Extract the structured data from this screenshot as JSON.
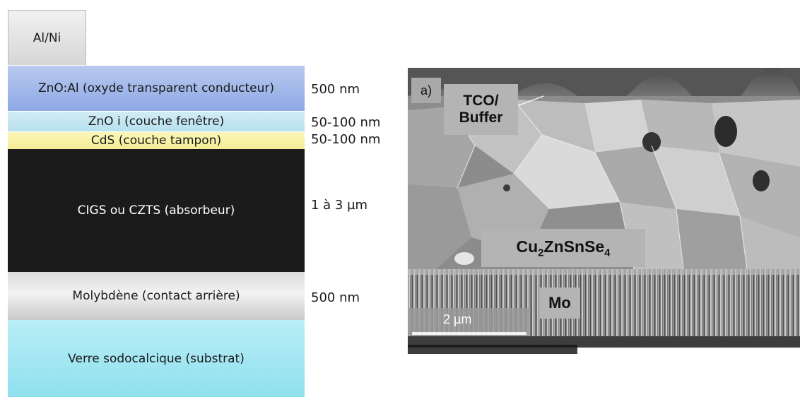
{
  "stack": {
    "top_contact": "Al/Ni",
    "layers": [
      {
        "label": "ZnO:Al (oxyde transparent conducteur)",
        "thickness": "500 nm",
        "color": "#9fb5ea"
      },
      {
        "label": "ZnO i (couche fenêtre)",
        "thickness": "50-100  nm",
        "color": "#c6e7f2"
      },
      {
        "label": "CdS (couche tampon)",
        "thickness": "50-100  nm",
        "color": "#f8f2a8"
      },
      {
        "label": "CIGS ou CZTS (absorbeur)",
        "thickness": "1 à 3 µm",
        "color": "#1b1b1b"
      },
      {
        "label": "Molybdène (contact arrière)",
        "thickness": "500 nm",
        "color": "#d9d9d9"
      },
      {
        "label": "Verre sodocalcique (substrat)",
        "thickness": "",
        "color": "#a7e7f2"
      }
    ]
  },
  "micrograph": {
    "panel_label": "a)",
    "tco_label_line1": "TCO/",
    "tco_label_line2": "Buffer",
    "absorber_label": {
      "base1": "Cu",
      "sub1": "2",
      "base2": "ZnSnSe",
      "sub2": "4"
    },
    "mo_label": "Mo",
    "scale_bar": "2 µm"
  }
}
